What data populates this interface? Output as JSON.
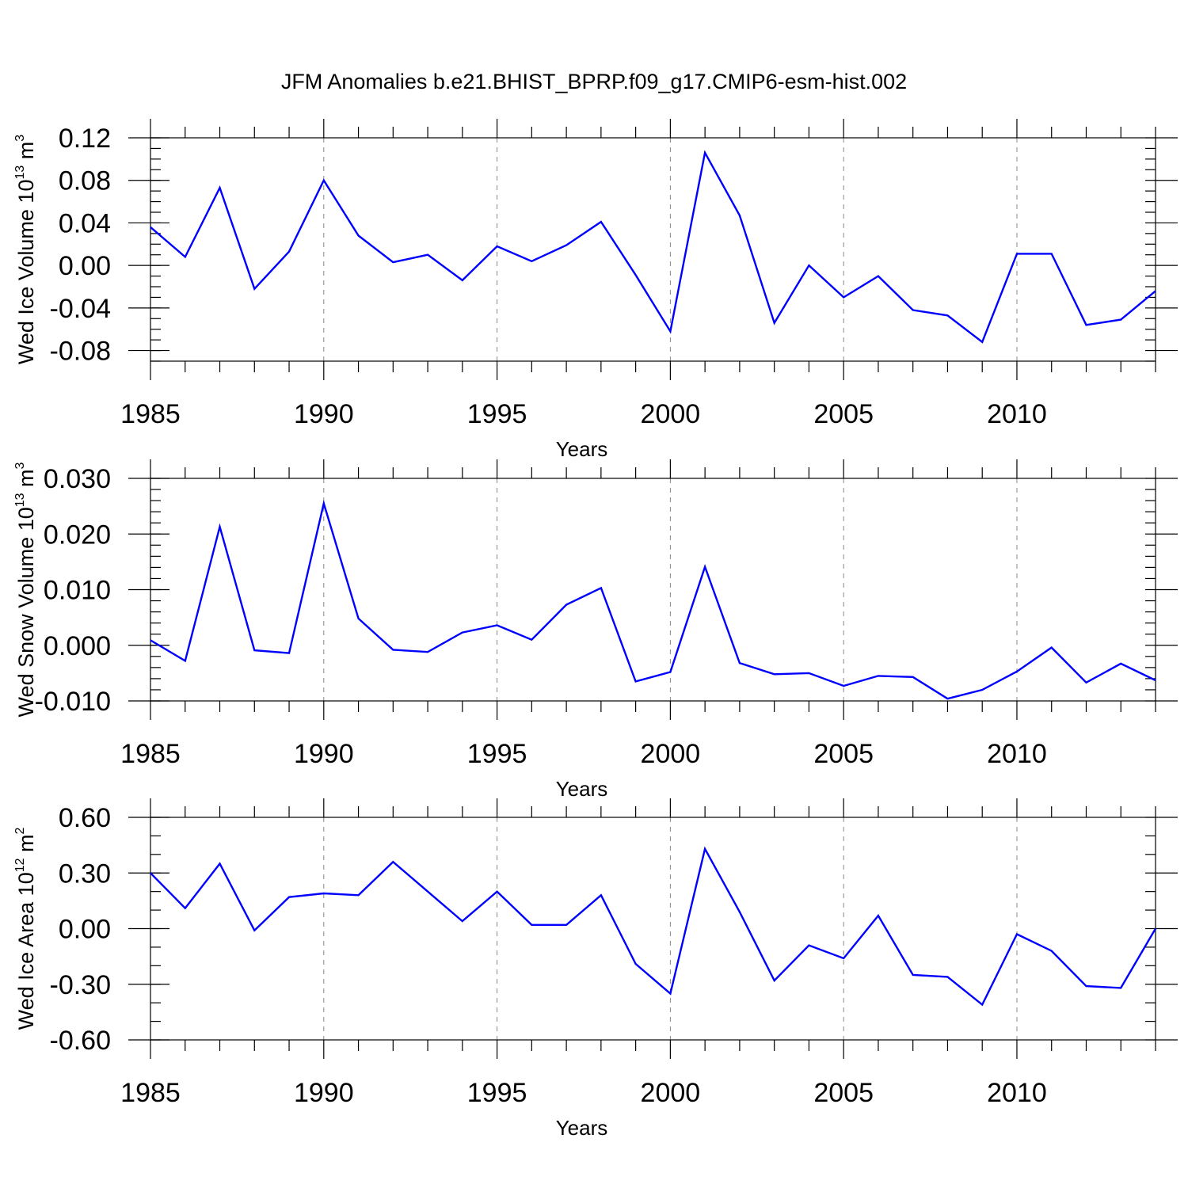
{
  "figure_title": "JFM Anomalies b.e21.BHIST_BPRP.f09_g17.CMIP6-esm-hist.002",
  "colors": {
    "series": "#0000ff",
    "axis": "#000000",
    "grid": "#888888"
  },
  "chart_data": [
    {
      "type": "line",
      "title": "JFM Anomalies b.e21.BHIST_BPRP.f09_g17.CMIP6-esm-hist.002",
      "xlabel": "Years",
      "ylabel": {
        "text": "Wed Ice Volume 10",
        "sup": "13",
        "unit": " m",
        "unit_sup": "3"
      },
      "xlim": [
        1985,
        2014
      ],
      "ylim": [
        -0.09,
        0.12
      ],
      "xticks": [
        "1985",
        "1990",
        "1995",
        "2000",
        "2005",
        "2010"
      ],
      "yticks": [
        {
          "v": 0.12,
          "label": "0.12"
        },
        {
          "v": 0.08,
          "label": "0.08"
        },
        {
          "v": 0.04,
          "label": "0.04"
        },
        {
          "v": 0.0,
          "label": "0.00"
        },
        {
          "v": -0.04,
          "label": "-0.04"
        },
        {
          "v": -0.08,
          "label": "-0.08"
        }
      ],
      "yminor_step": 0.01,
      "grid": "vertical dashed at major x ticks",
      "x": [
        1985,
        1986,
        1987,
        1988,
        1989,
        1990,
        1991,
        1992,
        1993,
        1994,
        1995,
        1996,
        1997,
        1998,
        1999,
        2000,
        2001,
        2002,
        2003,
        2004,
        2005,
        2006,
        2007,
        2008,
        2009,
        2010,
        2011,
        2012,
        2013,
        2014
      ],
      "values": [
        0.036,
        0.008,
        0.073,
        -0.022,
        0.013,
        0.08,
        0.028,
        0.003,
        0.01,
        -0.014,
        0.018,
        0.004,
        0.019,
        0.041,
        -0.009,
        -0.062,
        0.106,
        0.047,
        -0.054,
        -0.0,
        -0.03,
        -0.01,
        -0.042,
        -0.047,
        -0.072,
        0.011,
        0.011,
        -0.056,
        -0.051,
        -0.024
      ]
    },
    {
      "type": "line",
      "xlabel": "Years",
      "ylabel": {
        "text": "Wed Snow Volume 10",
        "sup": "13",
        "unit": " m",
        "unit_sup": "3"
      },
      "xlim": [
        1985,
        2014
      ],
      "ylim": [
        -0.01,
        0.03
      ],
      "xticks": [
        "1985",
        "1990",
        "1995",
        "2000",
        "2005",
        "2010"
      ],
      "yticks": [
        {
          "v": 0.03,
          "label": "0.030"
        },
        {
          "v": 0.02,
          "label": "0.020"
        },
        {
          "v": 0.01,
          "label": "0.010"
        },
        {
          "v": 0.0,
          "label": "0.000"
        },
        {
          "v": -0.01,
          "label": "-0.010"
        }
      ],
      "yminor_step": 0.002,
      "grid": "vertical dashed at major x ticks",
      "x": [
        1985,
        1986,
        1987,
        1988,
        1989,
        1990,
        1991,
        1992,
        1993,
        1994,
        1995,
        1996,
        1997,
        1998,
        1999,
        2000,
        2001,
        2002,
        2003,
        2004,
        2005,
        2006,
        2007,
        2008,
        2009,
        2010,
        2011,
        2012,
        2013,
        2014
      ],
      "values": [
        0.0009,
        -0.0028,
        0.0213,
        -0.0009,
        -0.0014,
        0.0255,
        0.0048,
        -0.0008,
        -0.0012,
        0.0023,
        0.0036,
        0.001,
        0.0073,
        0.0103,
        -0.0065,
        -0.0048,
        0.0141,
        -0.0032,
        -0.0052,
        -0.005,
        -0.0073,
        -0.0055,
        -0.0057,
        -0.0096,
        -0.008,
        -0.0047,
        -0.0004,
        -0.0067,
        -0.0033,
        -0.0063
      ]
    },
    {
      "type": "line",
      "xlabel": "Years",
      "ylabel": {
        "text": "Wed Ice Area 10",
        "sup": "12",
        "unit": " m",
        "unit_sup": "2"
      },
      "xlim": [
        1985,
        2014
      ],
      "ylim": [
        -0.6,
        0.6
      ],
      "xticks": [
        "1985",
        "1990",
        "1995",
        "2000",
        "2005",
        "2010"
      ],
      "yticks": [
        {
          "v": 0.6,
          "label": "0.60"
        },
        {
          "v": 0.3,
          "label": "0.30"
        },
        {
          "v": 0.0,
          "label": "0.00"
        },
        {
          "v": -0.3,
          "label": "-0.30"
        },
        {
          "v": -0.6,
          "label": "-0.60"
        }
      ],
      "yminor_step": 0.1,
      "grid": "vertical dashed at major x ticks",
      "x": [
        1985,
        1986,
        1987,
        1988,
        1989,
        1990,
        1991,
        1992,
        1993,
        1994,
        1995,
        1996,
        1997,
        1998,
        1999,
        2000,
        2001,
        2002,
        2003,
        2004,
        2005,
        2006,
        2007,
        2008,
        2009,
        2010,
        2011,
        2012,
        2013,
        2014
      ],
      "values": [
        0.3,
        0.11,
        0.35,
        -0.01,
        0.17,
        0.19,
        0.18,
        0.36,
        0.2,
        0.04,
        0.2,
        0.02,
        0.02,
        0.18,
        -0.19,
        -0.35,
        0.43,
        0.09,
        -0.28,
        -0.09,
        -0.16,
        0.07,
        -0.25,
        -0.26,
        -0.41,
        -0.03,
        -0.12,
        -0.31,
        -0.32,
        0.0
      ]
    }
  ]
}
